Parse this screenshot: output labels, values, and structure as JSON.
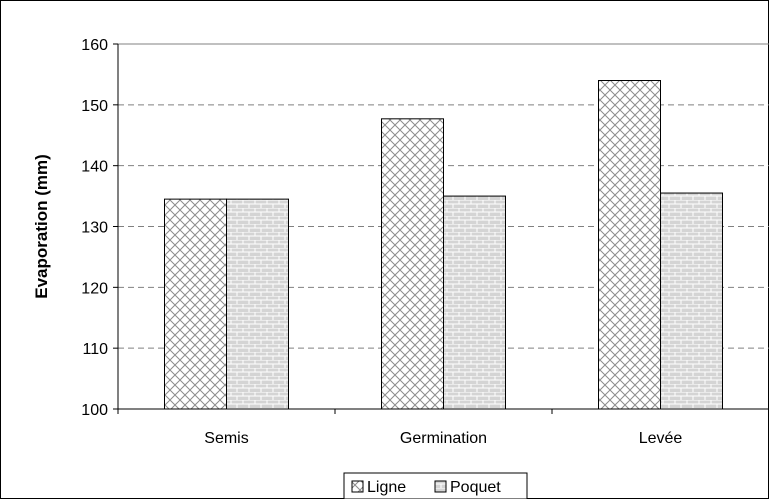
{
  "chart_data": {
    "type": "bar",
    "title": "",
    "xlabel": "",
    "ylabel": "Evaporation (mm)",
    "ylim": [
      100,
      160
    ],
    "yticks": [
      100,
      110,
      120,
      130,
      140,
      150,
      160
    ],
    "categories": [
      "Semis",
      "Germination",
      "Levée"
    ],
    "series": [
      {
        "name": "Ligne",
        "values": [
          134.5,
          147.7,
          154.0
        ],
        "pattern": "crosshatch",
        "color": "#c8c8c8"
      },
      {
        "name": "Poquet",
        "values": [
          134.5,
          135.0,
          135.5
        ],
        "pattern": "brick",
        "color": "#b4b4b4"
      }
    ],
    "grid": "horizontal dashed",
    "legend_position": "bottom"
  }
}
